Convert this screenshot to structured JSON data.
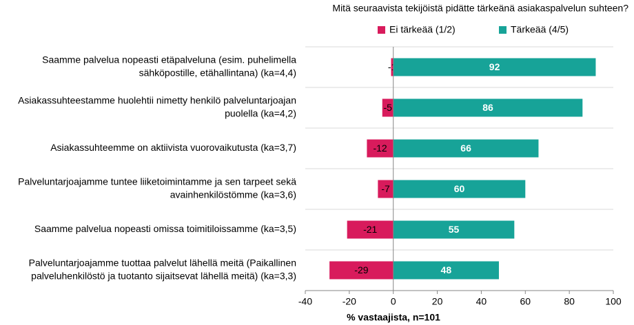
{
  "chart_data": {
    "type": "diverging-bar",
    "title": "Mitä seuraavista tekijöistä pidätte tärkeänä asiakaspalvelun suhteen?",
    "x_label": "% vastaajista, n=101",
    "categories": [
      [
        "Saamme palvelua nopeasti etäpalveluna (esim. puhelimella",
        "sähköpostille, etähallintana) (ka=4,4)"
      ],
      [
        "Asiakassuhteestamme huolehtii nimetty henkilö palveluntarjoajan",
        "puolella (ka=4,2)"
      ],
      [
        "Asiakassuhteemme on aktiivista vuorovaikutusta (ka=3,7)"
      ],
      [
        "Palveluntarjoajamme tuntee liiketoimintamme ja sen tarpeet sekä",
        "avainhenkilöstömme (ka=3,6)"
      ],
      [
        "Saamme palvelua nopeasti omissa toimitiloissamme (ka=3,5)"
      ],
      [
        "Palveluntarjoajamme tuottaa palvelut lähellä meitä (Paikallinen",
        "palveluhenkilöstö ja tuotanto sijaitsevat lähellä meitä) (ka=3,3)"
      ]
    ],
    "series": [
      {
        "name": "Ei tärkeää (1/2)",
        "color": "#d81b5c",
        "values": [
          -1,
          -5,
          -12,
          -7,
          -21,
          -29
        ]
      },
      {
        "name": "Tärkeää (4/5)",
        "color": "#17a398",
        "values": [
          92,
          86,
          66,
          60,
          55,
          48
        ]
      }
    ],
    "xlim": [
      -40,
      100
    ],
    "xticks": [
      -40,
      -20,
      0,
      20,
      40,
      60,
      80,
      100
    ],
    "grid": true
  }
}
